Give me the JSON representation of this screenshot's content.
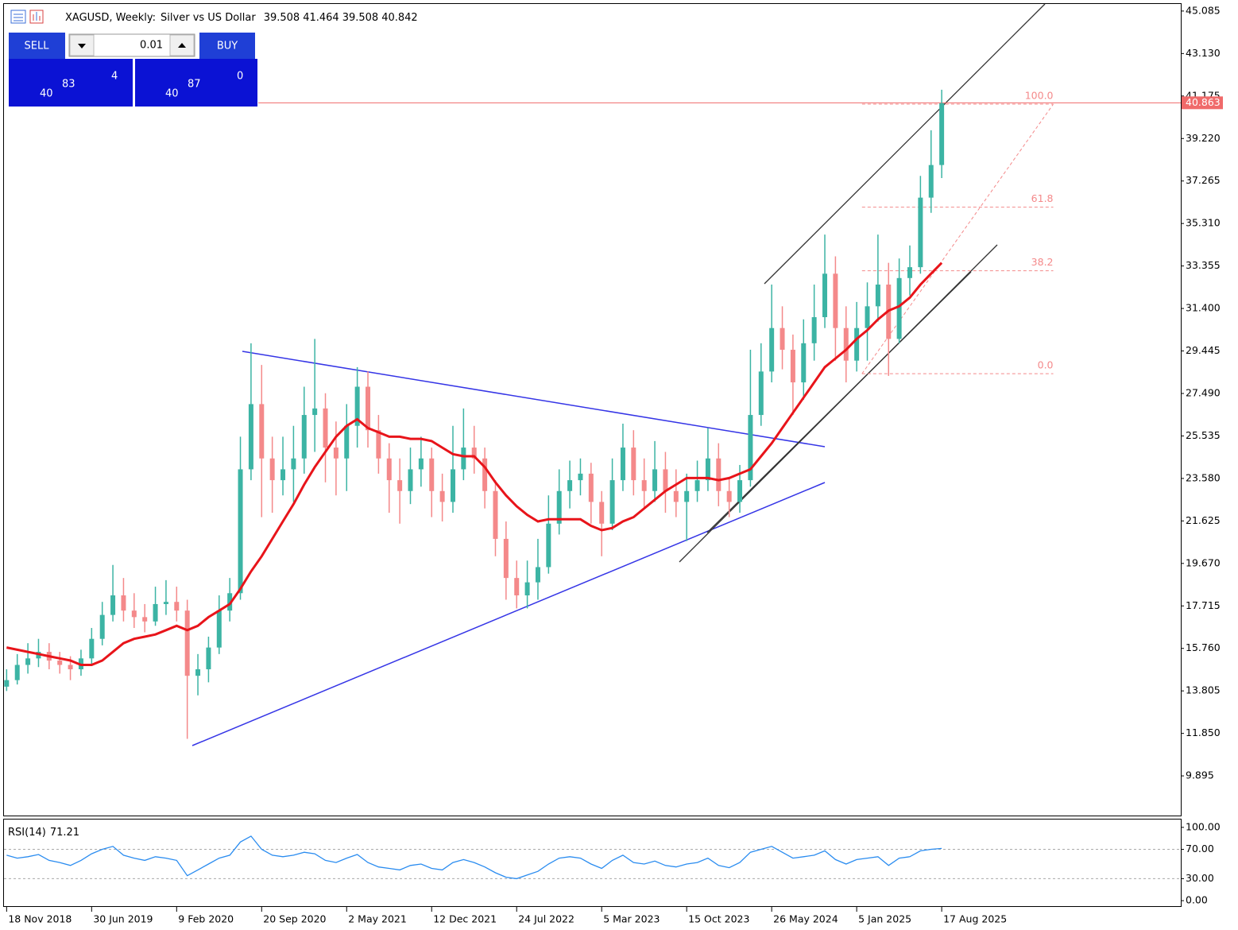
{
  "chart_data": [
    {
      "type": "candlestick",
      "title": "XAGUSD, Weekly:",
      "subtitle": "Silver vs US Dollar",
      "ohlc_readout": [
        39.508,
        41.464,
        39.508,
        40.842
      ],
      "x": [
        0,
        4,
        8,
        12,
        16,
        20,
        24,
        28,
        32,
        36,
        40,
        44,
        48,
        52,
        56,
        60,
        64,
        68,
        72,
        76,
        80,
        84,
        88,
        92,
        96,
        100,
        104,
        108,
        112,
        116,
        120,
        124,
        128,
        132,
        136,
        140,
        144,
        148,
        152,
        156,
        160,
        164,
        168,
        172,
        176,
        180,
        184,
        188,
        192,
        196,
        200,
        204,
        208,
        212,
        216,
        220,
        224,
        228,
        232,
        236,
        240,
        244,
        248,
        252,
        256,
        260,
        264,
        268,
        272,
        276,
        280,
        284,
        288,
        292,
        296,
        300,
        304,
        308,
        312,
        316,
        320,
        324,
        328,
        332,
        336,
        340,
        344,
        348,
        352
      ],
      "open": [
        14.0,
        14.3,
        15.0,
        15.3,
        15.6,
        15.2,
        15.0,
        14.8,
        15.3,
        16.2,
        17.3,
        18.2,
        17.5,
        17.2,
        17.0,
        17.8,
        17.9,
        17.5,
        14.5,
        14.8,
        15.8,
        17.5,
        18.3,
        24.0,
        27.0,
        24.5,
        23.5,
        24.0,
        24.5,
        26.5,
        26.8,
        25.0,
        24.5,
        26.0,
        27.8,
        25.8,
        24.5,
        23.5,
        23.0,
        24.0,
        24.5,
        23.0,
        22.5,
        24.0,
        25.0,
        24.5,
        23.0,
        20.8,
        19.0,
        18.2,
        18.8,
        19.5,
        21.5,
        23.0,
        23.5,
        23.8,
        22.5,
        21.5,
        23.5,
        25.0,
        23.5,
        23.0,
        24.0,
        23.0,
        22.5,
        23.0,
        23.5,
        24.5,
        23.0,
        22.5,
        23.5,
        26.5,
        28.5,
        30.5,
        29.5,
        28.0,
        29.8,
        31.0,
        33.0,
        30.5,
        29.0,
        30.5,
        31.5,
        32.5,
        30.0,
        32.8,
        33.3,
        36.5,
        38.0
      ],
      "high": [
        14.8,
        15.5,
        16.0,
        16.2,
        16.0,
        15.6,
        15.4,
        15.7,
        16.7,
        17.9,
        19.6,
        19.0,
        18.3,
        17.8,
        18.6,
        18.9,
        18.6,
        18.0,
        15.5,
        16.3,
        18.2,
        19.0,
        25.5,
        29.8,
        28.8,
        25.5,
        25.5,
        26.0,
        27.8,
        30.0,
        27.5,
        26.2,
        27.0,
        28.7,
        28.5,
        26.5,
        25.2,
        24.5,
        25.0,
        25.5,
        25.0,
        23.8,
        26.0,
        26.8,
        26.0,
        25.0,
        23.5,
        21.6,
        19.8,
        19.8,
        20.8,
        22.8,
        24.0,
        24.4,
        24.5,
        24.3,
        23.0,
        24.5,
        26.1,
        25.8,
        24.5,
        25.3,
        24.8,
        24.0,
        23.8,
        24.4,
        25.9,
        25.2,
        23.6,
        24.2,
        29.5,
        29.8,
        32.5,
        31.5,
        30.2,
        30.9,
        32.5,
        34.8,
        33.8,
        31.5,
        31.7,
        32.6,
        34.8,
        33.5,
        33.7,
        34.3,
        37.5,
        39.6,
        41.464
      ],
      "low": [
        13.8,
        14.1,
        14.6,
        14.9,
        14.8,
        14.6,
        14.3,
        14.5,
        15.0,
        15.9,
        17.0,
        17.0,
        16.7,
        16.5,
        16.8,
        17.3,
        17.0,
        11.6,
        13.6,
        14.2,
        15.5,
        17.0,
        18.0,
        23.5,
        21.8,
        22.0,
        22.8,
        22.5,
        23.8,
        24.8,
        23.4,
        22.8,
        23.0,
        25.0,
        25.0,
        23.8,
        22.0,
        21.5,
        22.4,
        23.2,
        21.8,
        21.6,
        22.0,
        23.5,
        23.8,
        22.2,
        20.0,
        18.0,
        17.6,
        17.6,
        18.0,
        19.2,
        21.0,
        22.2,
        22.8,
        21.5,
        20.0,
        21.2,
        23.0,
        22.8,
        22.2,
        22.5,
        22.0,
        21.8,
        20.7,
        22.5,
        23.0,
        22.3,
        21.8,
        22.0,
        23.2,
        26.0,
        28.0,
        28.6,
        26.5,
        27.2,
        29.0,
        30.5,
        29.0,
        28.0,
        28.5,
        29.0,
        30.8,
        28.3,
        29.8,
        32.0,
        33.0,
        35.8,
        37.4
      ],
      "close": [
        14.3,
        15.0,
        15.3,
        15.6,
        15.2,
        15.0,
        14.8,
        15.3,
        16.2,
        17.3,
        18.2,
        17.5,
        17.2,
        17.0,
        17.8,
        17.9,
        17.5,
        14.5,
        14.8,
        15.8,
        17.5,
        18.3,
        24.0,
        27.0,
        24.5,
        23.5,
        24.0,
        24.5,
        26.5,
        26.8,
        25.0,
        24.5,
        26.0,
        27.8,
        25.8,
        24.5,
        23.5,
        23.0,
        24.0,
        24.5,
        23.0,
        22.5,
        24.0,
        25.0,
        24.5,
        23.0,
        20.8,
        19.0,
        18.2,
        18.8,
        19.5,
        21.5,
        23.0,
        23.5,
        23.8,
        22.5,
        21.5,
        23.5,
        25.0,
        23.5,
        23.0,
        24.0,
        23.0,
        22.5,
        23.0,
        23.5,
        24.5,
        23.0,
        22.5,
        23.5,
        26.5,
        28.5,
        30.5,
        29.5,
        28.0,
        29.8,
        31.0,
        33.0,
        30.5,
        29.0,
        30.5,
        31.5,
        32.5,
        30.0,
        32.8,
        33.3,
        36.5,
        38.0,
        40.842
      ],
      "up_color": "#3cb4a4",
      "down_color": "#f4898a",
      "series": [
        {
          "type": "line",
          "color": "#e8141a",
          "values": [
            15.8,
            15.7,
            15.6,
            15.5,
            15.4,
            15.3,
            15.2,
            15.0,
            15.0,
            15.2,
            15.6,
            16.0,
            16.2,
            16.3,
            16.4,
            16.6,
            16.8,
            16.6,
            16.8,
            17.2,
            17.5,
            17.8,
            18.5,
            19.3,
            20.0,
            20.8,
            21.6,
            22.4,
            23.3,
            24.1,
            24.8,
            25.5,
            26.0,
            26.3,
            25.9,
            25.7,
            25.5,
            25.5,
            25.4,
            25.4,
            25.3,
            25.0,
            24.7,
            24.6,
            24.6,
            24.1,
            23.4,
            22.8,
            22.3,
            21.9,
            21.6,
            21.7,
            21.7,
            21.7,
            21.7,
            21.4,
            21.2,
            21.3,
            21.6,
            21.8,
            22.2,
            22.6,
            23.0,
            23.3,
            23.6,
            23.6,
            23.6,
            23.5,
            23.6,
            23.8,
            24.0,
            24.6,
            25.2,
            25.9,
            26.6,
            27.3,
            28.0,
            28.7,
            29.1,
            29.5,
            30.0,
            30.4,
            30.9,
            31.3,
            31.5,
            31.9,
            32.5,
            33.0,
            33.5
          ]
        }
      ],
      "xlim": [
        -1,
        442
      ],
      "ylim": [
        8.07,
        45.41
      ],
      "yticks": [
        45.085,
        {
          "value": 43.13,
          "label": "43.130"
        },
        41.175,
        {
          "value": 39.22,
          "label": "39.220"
        },
        37.265,
        {
          "value": 35.31,
          "label": "35.310"
        },
        33.355,
        {
          "value": 31.4,
          "label": "31.400"
        },
        29.445,
        {
          "value": 27.49,
          "label": "27.490"
        },
        25.535,
        {
          "value": 23.58,
          "label": "23.580"
        },
        21.625,
        {
          "value": 19.67,
          "label": "19.670"
        },
        17.715,
        {
          "value": 15.76,
          "label": "15.760"
        },
        13.805,
        {
          "value": 11.85,
          "label": "11.850"
        },
        9.895
      ],
      "xticks": [
        {
          "value": 0,
          "label": "18 Nov 2018"
        },
        {
          "value": 32,
          "label": "30 Jun 2019"
        },
        {
          "value": 64,
          "label": "9 Feb 2020"
        },
        {
          "value": 96,
          "label": "20 Sep 2020"
        },
        {
          "value": 128,
          "label": "2 May 2021"
        },
        {
          "value": 160,
          "label": "12 Dec 2021"
        },
        {
          "value": 192,
          "label": "24 Jul 2022"
        },
        {
          "value": 224,
          "label": "5 Mar 2023"
        },
        {
          "value": 256,
          "label": "15 Oct 2023"
        },
        {
          "value": 288,
          "label": "26 May 2024"
        },
        {
          "value": 320,
          "label": "5 Jan 2025"
        },
        {
          "value": 352,
          "label": "17 Aug 2025"
        }
      ],
      "last_price": 40.863,
      "last_price_color": "#f06a6a",
      "fibonacci": {
        "low": 28.4,
        "high": 40.8,
        "x_range": [
          322,
          394
        ],
        "color": "#f4898a",
        "levels": [
          {
            "value": 100,
            "label": "100.0"
          },
          {
            "value": 61.8,
            "label": "61.8"
          },
          {
            "value": 38.2,
            "label": "38.2"
          },
          {
            "value": 0,
            "label": "0.0"
          }
        ]
      }
    },
    {
      "type": "line",
      "title": "RSI(14)",
      "series": [
        {
          "color": "#2a8cf0",
          "values": [
            62,
            58,
            60,
            63,
            55,
            52,
            48,
            55,
            64,
            70,
            74,
            62,
            58,
            55,
            60,
            58,
            55,
            34,
            42,
            50,
            58,
            62,
            80,
            88,
            70,
            62,
            60,
            62,
            66,
            64,
            55,
            52,
            58,
            63,
            52,
            46,
            44,
            42,
            48,
            50,
            44,
            42,
            52,
            56,
            52,
            46,
            38,
            32,
            30,
            35,
            40,
            50,
            58,
            60,
            58,
            50,
            44,
            55,
            62,
            52,
            50,
            54,
            48,
            46,
            50,
            52,
            58,
            48,
            45,
            52,
            66,
            70,
            74,
            66,
            58,
            60,
            62,
            68,
            56,
            50,
            56,
            58,
            60,
            48,
            58,
            60,
            68,
            70,
            71.21
          ]
        }
      ],
      "ylim": [
        -7.5,
        110.7
      ],
      "yticks": [
        {
          "value": 100,
          "label": "100.00"
        },
        {
          "value": 70,
          "label": "70.00"
        },
        {
          "value": 30,
          "label": "30.00"
        },
        {
          "value": 0,
          "label": "0.00"
        }
      ],
      "levels": [
        70,
        30
      ]
    }
  ],
  "trade_panel": {
    "sell": "SELL",
    "buy": "BUY",
    "volume": "0.01",
    "bid": {
      "prefix": "40",
      "main": "83",
      "suffix": "4"
    },
    "ask": {
      "prefix": "40",
      "main": "87",
      "suffix": "0"
    }
  }
}
